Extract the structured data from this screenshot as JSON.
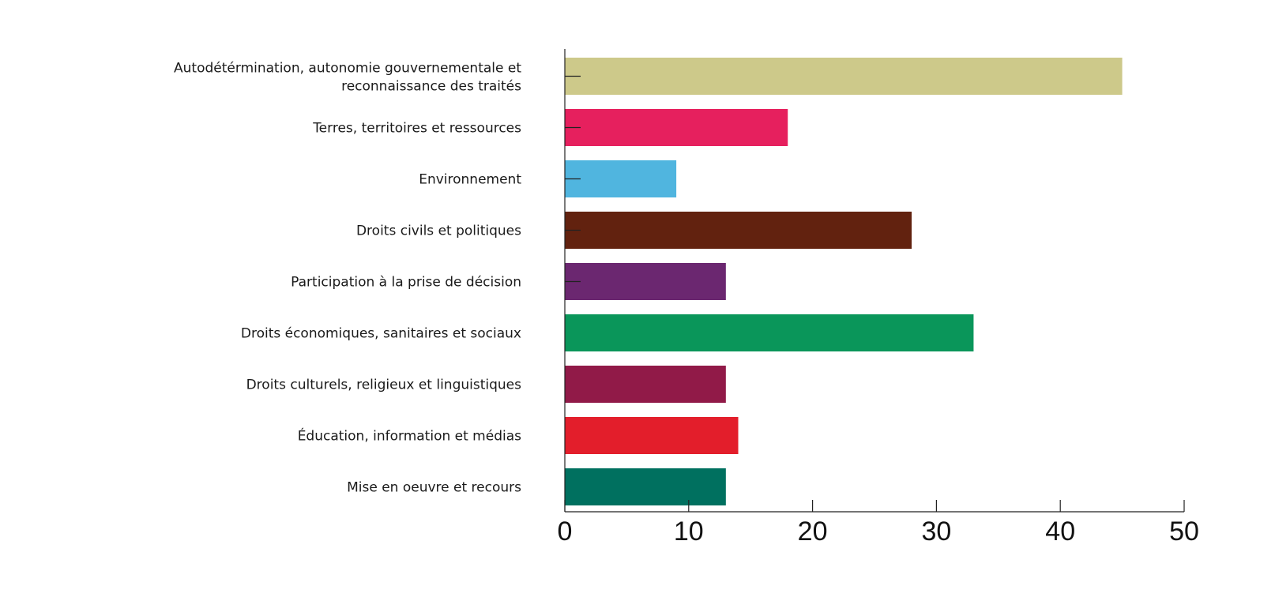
{
  "chart_data": {
    "type": "bar",
    "orientation": "horizontal",
    "title": "",
    "xlabel": "",
    "ylabel": "",
    "xlim": [
      0,
      50
    ],
    "x_ticks": [
      "0",
      "10",
      "20",
      "30",
      "40",
      "50"
    ],
    "grid": false,
    "categories": [
      [
        "Autodétérmination, autonomie gouvernementale et",
        "reconnaissance des traités"
      ],
      [
        "Terres, territoires et ressources"
      ],
      [
        "Environnement"
      ],
      [
        "Droits civils et politiques"
      ],
      [
        "Participation à la prise de décision"
      ],
      [
        "Droits économiques, sanitaires et sociaux"
      ],
      [
        "Droits culturels, religieux et linguistiques"
      ],
      [
        "Éducation, information et médias"
      ],
      [
        "Mise en oeuvre et recours"
      ]
    ],
    "values": [
      45,
      18,
      9,
      28,
      13,
      33,
      13,
      14,
      13
    ],
    "colors": [
      "#cdc98a",
      "#e6205e",
      "#50b5df",
      "#62220f",
      "#6b2770",
      "#0a965a",
      "#911a48",
      "#e31e2b",
      "#00705f"
    ]
  }
}
